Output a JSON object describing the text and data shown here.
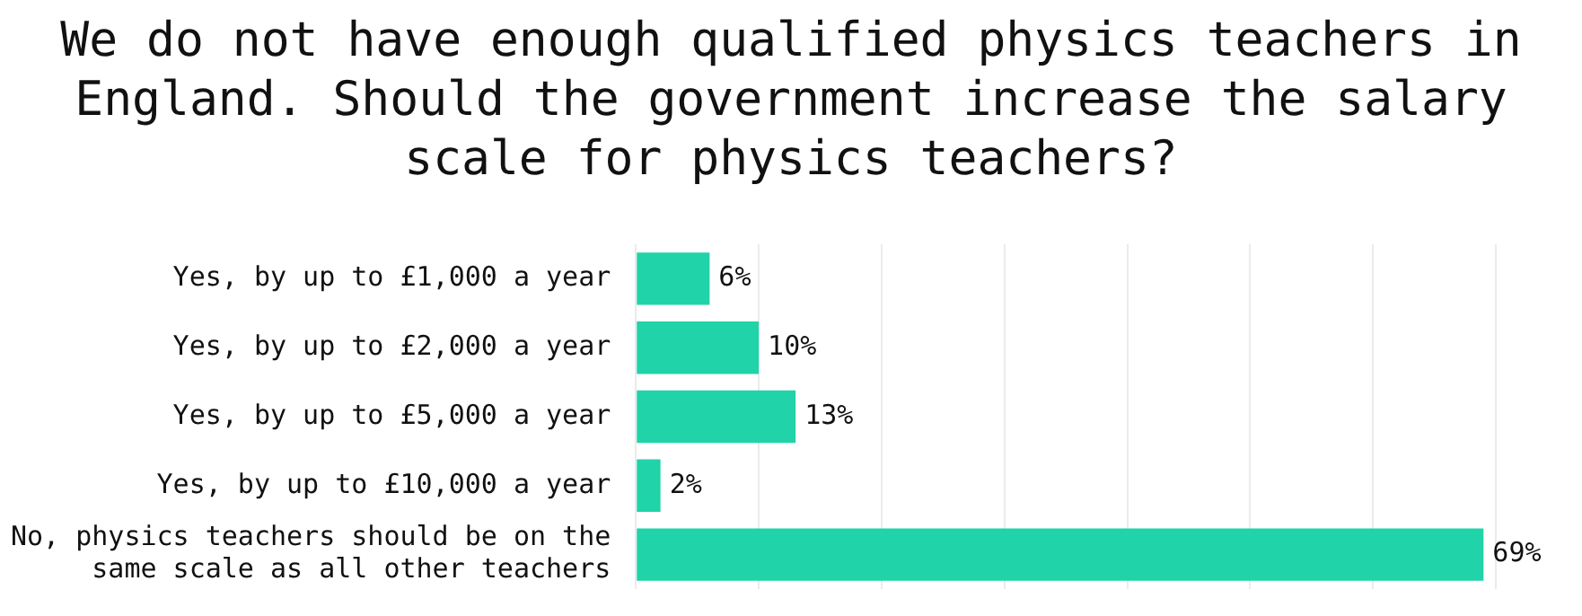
{
  "chart_data": {
    "type": "bar",
    "orientation": "horizontal",
    "title": "We do not have enough qualified physics teachers in England. Should the government increase the salary scale for physics teachers?",
    "categories": [
      "Yes, by up to £1,000 a year",
      "Yes, by up to £2,000 a year",
      "Yes, by up to £5,000 a year",
      "Yes, by up to £10,000 a year",
      "No, physics teachers should be on the same scale as all other teachers"
    ],
    "values": [
      6,
      10,
      13,
      2,
      69
    ],
    "value_labels": [
      "6%",
      "10%",
      "13%",
      "2%",
      "69%"
    ],
    "color": "#20d3a8",
    "grid": "x",
    "tick_labels": "y",
    "legend": false
  }
}
